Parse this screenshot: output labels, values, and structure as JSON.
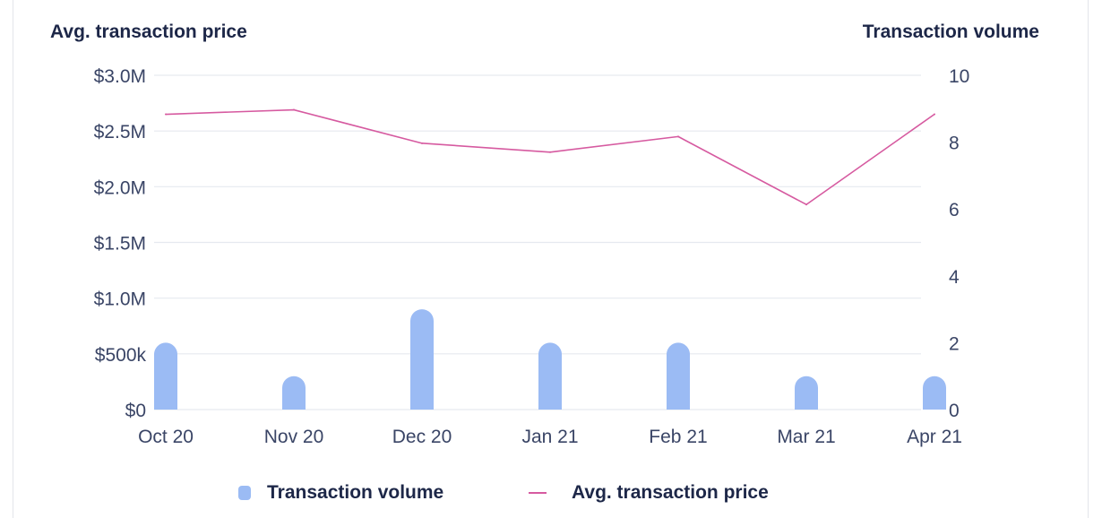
{
  "left_axis_title": "Avg. transaction price",
  "right_axis_title": "Transaction volume",
  "legend": {
    "volume_label": "Transaction volume",
    "price_label": "Avg. transaction price"
  },
  "colors": {
    "bar": "#9bbbf4",
    "line": "#d65aa0",
    "grid": "#e6e9ef",
    "text": "#1d2748"
  },
  "chart_data": {
    "type": "bar",
    "categories": [
      "Oct 20",
      "Nov 20",
      "Dec 20",
      "Jan 21",
      "Feb 21",
      "Mar 21",
      "Apr 21"
    ],
    "series": [
      {
        "name": "Transaction volume",
        "type": "bar",
        "axis": "right",
        "values": [
          2,
          1,
          3,
          2,
          2,
          1,
          1
        ]
      },
      {
        "name": "Avg. transaction price",
        "type": "line",
        "axis": "left",
        "values": [
          2650000,
          2690000,
          2390000,
          2310000,
          2450000,
          1840000,
          2650000
        ]
      }
    ],
    "left_axis": {
      "ylim": [
        0,
        3000000
      ],
      "tick_values": [
        0,
        500000,
        1000000,
        1500000,
        2000000,
        2500000,
        3000000
      ],
      "tick_labels": [
        "$0",
        "$500k",
        "$1.0M",
        "$1.5M",
        "$2.0M",
        "$2.5M",
        "$3.0M"
      ]
    },
    "right_axis": {
      "ylim": [
        0,
        10
      ],
      "tick_values": [
        0,
        2,
        4,
        6,
        8,
        10
      ],
      "tick_labels": [
        "0",
        "2",
        "4",
        "6",
        "8",
        "10"
      ]
    },
    "grid": true,
    "legend_position": "bottom"
  }
}
